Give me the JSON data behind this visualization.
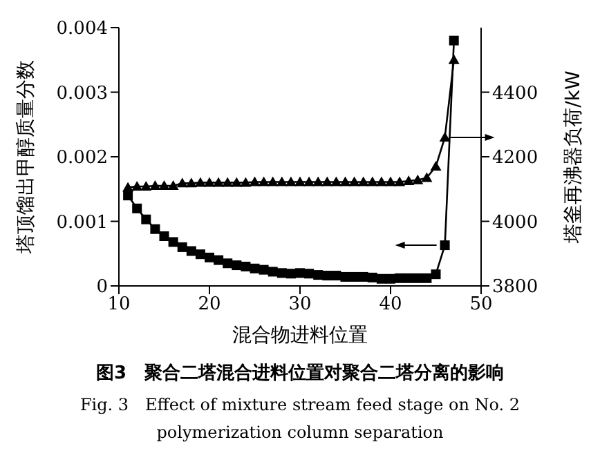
{
  "chart_data": {
    "type": "line",
    "title": "图3　聚合二塔混合进料位置对聚合二塔分离的影响",
    "subtitle": "Fig. 3　Effect of mixture stream feed stage on No. 2 polymerization column separation",
    "xlabel": "混合物进料位置",
    "ylabel": "塔顶馏出甲醇质量分数",
    "y2label": "塔釜再沸器负荷/kW",
    "x": [
      11,
      12,
      13,
      14,
      15,
      16,
      17,
      18,
      19,
      20,
      21,
      22,
      23,
      24,
      25,
      26,
      27,
      28,
      29,
      30,
      31,
      32,
      33,
      34,
      35,
      36,
      37,
      38,
      39,
      40,
      41,
      42,
      43,
      44,
      45,
      46,
      47
    ],
    "series": [
      {
        "color": "#000000",
        "marker": "square",
        "values": [
          0.0014,
          0.0012,
          0.00103,
          0.00088,
          0.00077,
          0.00068,
          0.0006,
          0.00054,
          0.00049,
          0.00044,
          0.0004,
          0.00035,
          0.00032,
          0.0003,
          0.00027,
          0.00025,
          0.00022,
          0.0002,
          0.00019,
          0.0002,
          0.00019,
          0.00017,
          0.00016,
          0.00016,
          0.00014,
          0.00014,
          0.00014,
          0.00013,
          0.00011,
          0.00011,
          0.00012,
          0.00012,
          0.00012,
          0.00012,
          0.00018,
          0.00063,
          0.0038
        ]
      },
      {
        "color": "#000000",
        "marker": "triangle",
        "axis": "y2",
        "values": [
          4105,
          4108,
          4108,
          4110,
          4110,
          4110,
          4118,
          4118,
          4120,
          4120,
          4120,
          4120,
          4120,
          4120,
          4122,
          4122,
          4122,
          4122,
          4122,
          4122,
          4122,
          4122,
          4122,
          4122,
          4122,
          4122,
          4122,
          4122,
          4122,
          4122,
          4122,
          4125,
          4128,
          4135,
          4170,
          4260,
          4500
        ]
      }
    ],
    "xlim": [
      10,
      50
    ],
    "xticks": [
      10,
      20,
      30,
      40,
      50
    ],
    "ylim": [
      0,
      0.004
    ],
    "yticks": [
      0,
      0.001,
      0.002,
      0.003,
      0.004
    ],
    "y2lim": [
      3800,
      4600
    ],
    "y2ticks": [
      3800,
      4000,
      4200,
      4400
    ],
    "grid": false,
    "legend": false,
    "line_style": "solid"
  }
}
